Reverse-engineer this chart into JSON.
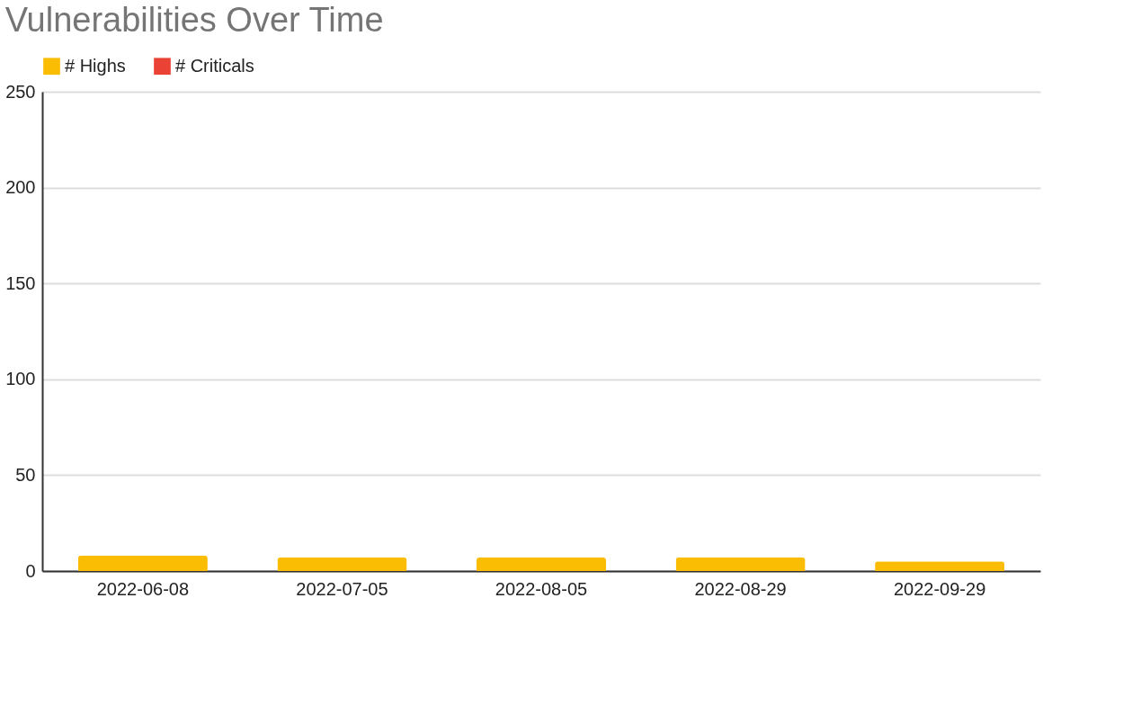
{
  "chart_data": {
    "type": "bar",
    "title": "Vulnerabilities Over Time",
    "categories": [
      "2022-06-08",
      "2022-07-05",
      "2022-08-05",
      "2022-08-29",
      "2022-09-29"
    ],
    "series": [
      {
        "name": "# Highs",
        "color": "#fbbc04",
        "values": [
          8,
          7,
          7,
          7,
          5
        ]
      },
      {
        "name": "# Criticals",
        "color": "#ea4335",
        "values": [
          0,
          0,
          0,
          0,
          0
        ]
      }
    ],
    "stacked": true,
    "ylim": [
      0,
      250
    ],
    "yticks": [
      0,
      50,
      100,
      150,
      200,
      250
    ],
    "grid": "y",
    "legend": "top"
  }
}
